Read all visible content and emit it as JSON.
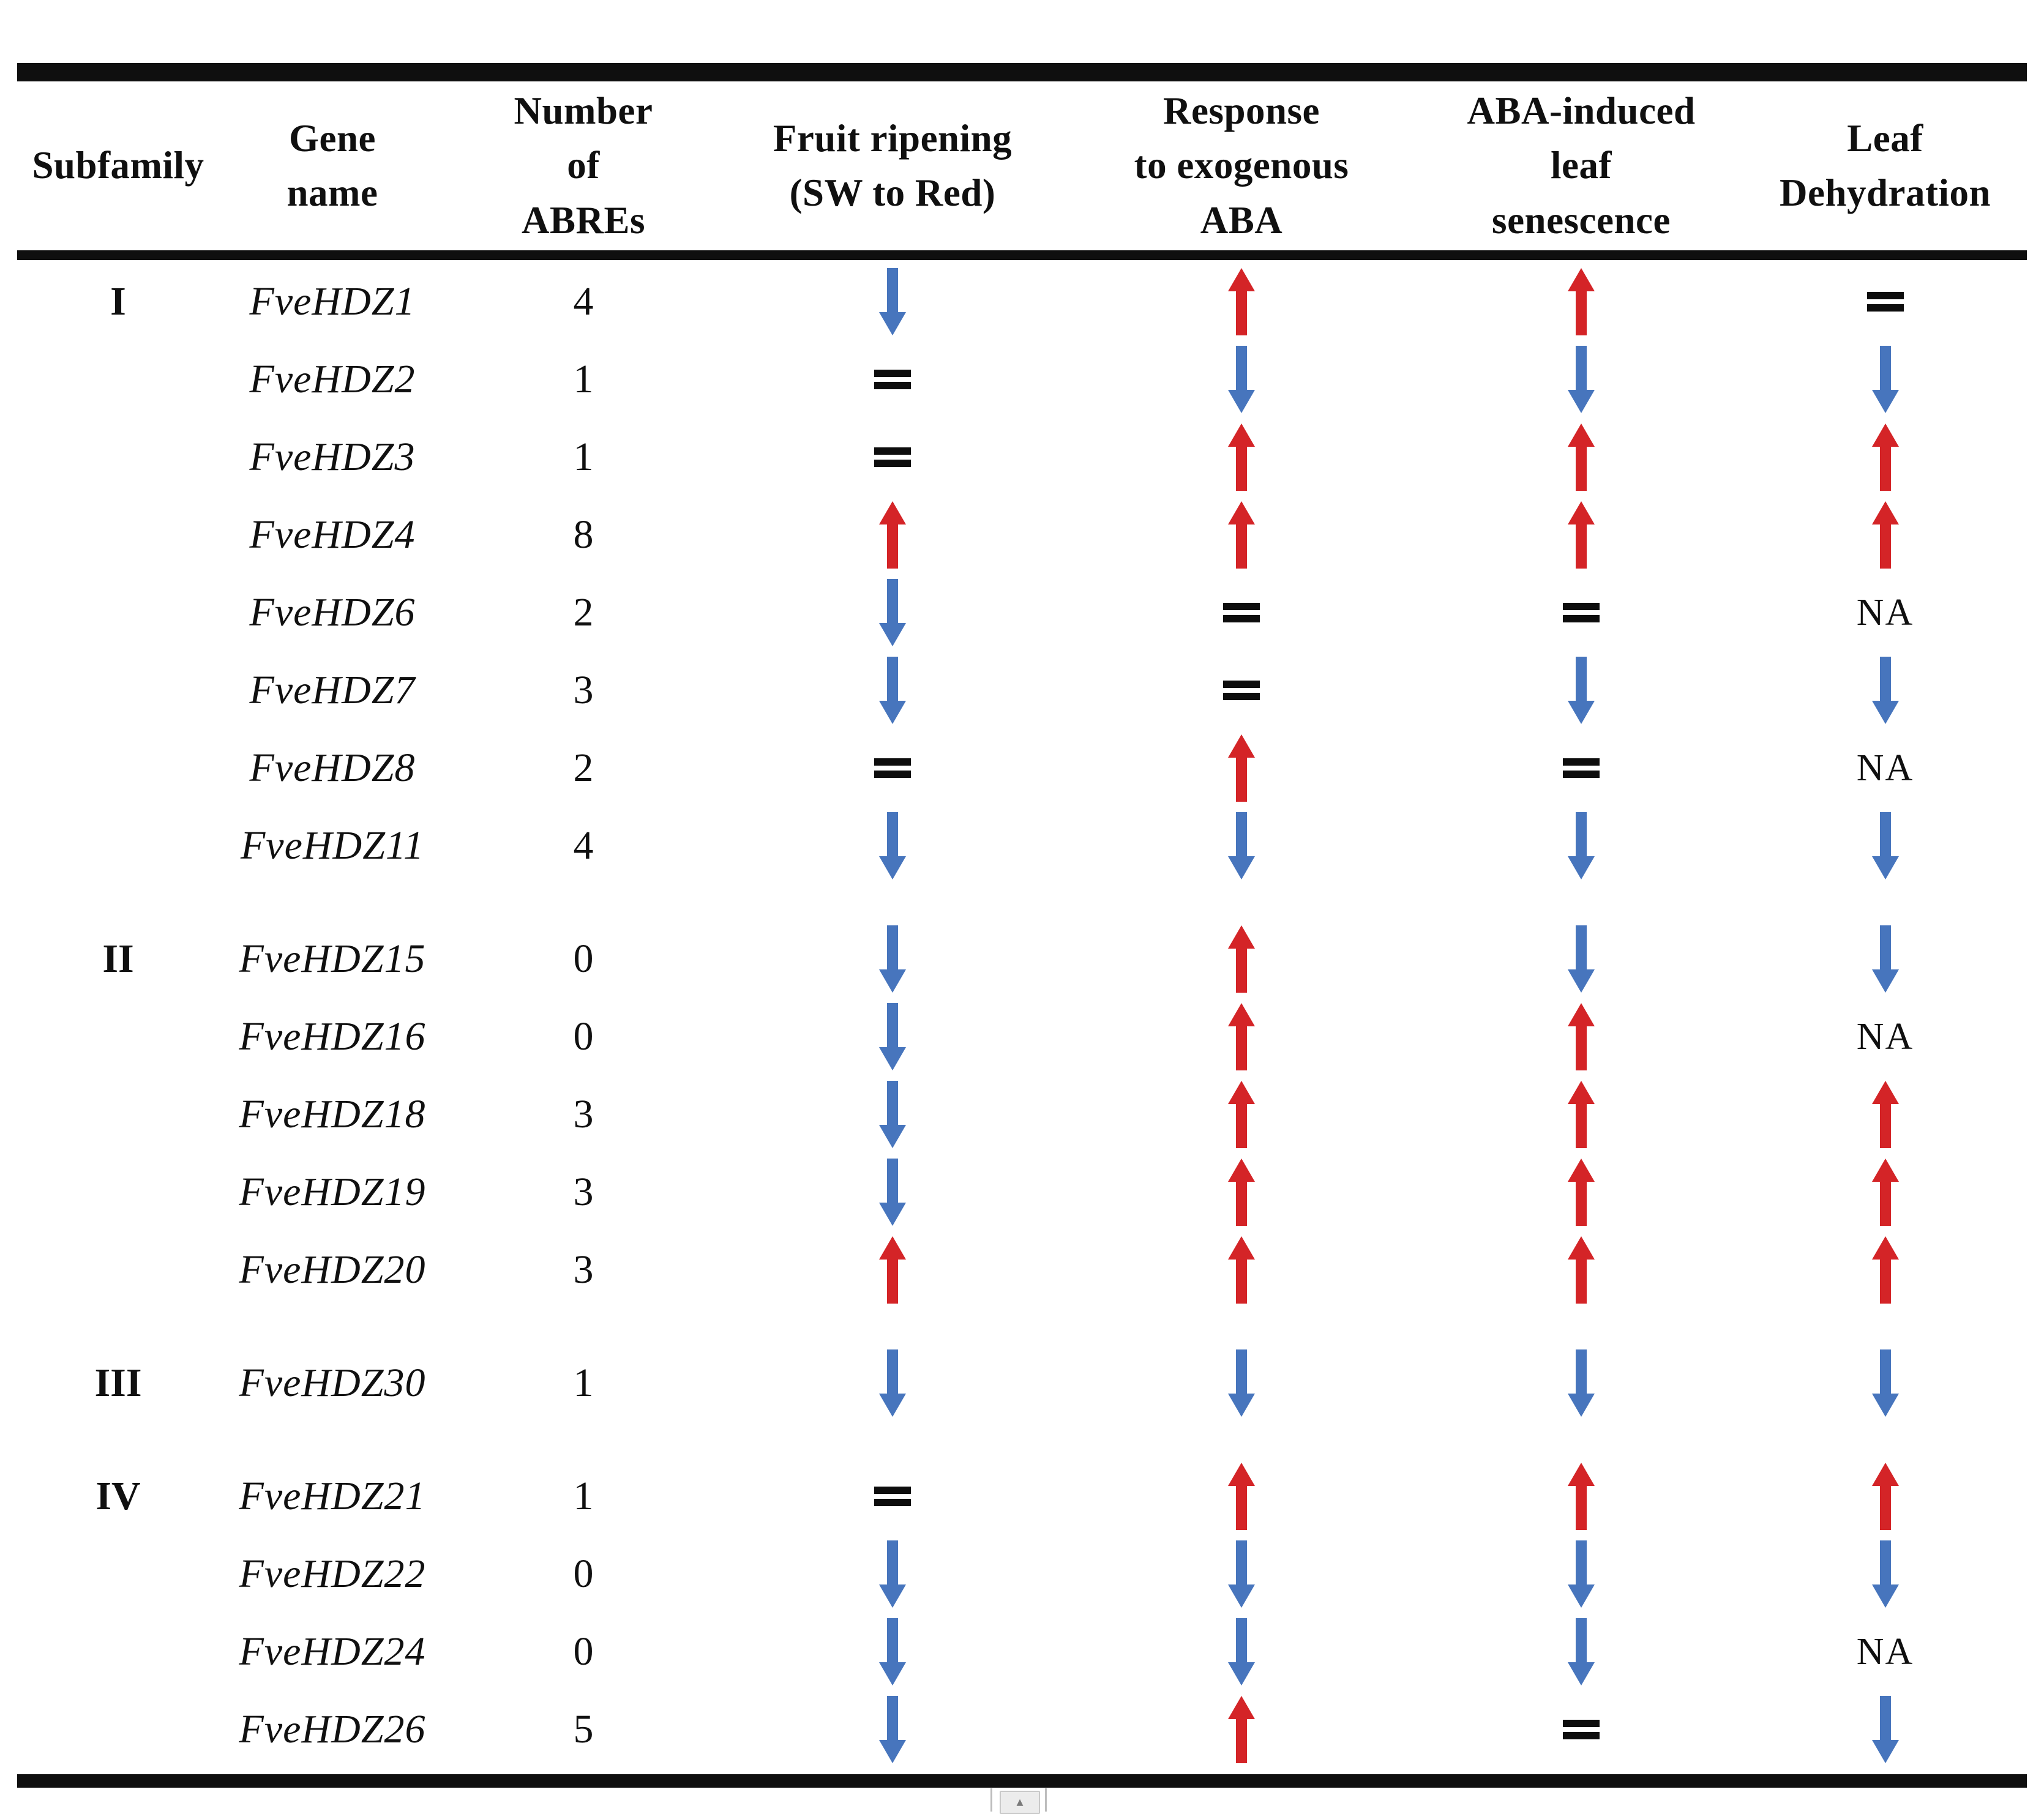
{
  "table": {
    "columns": [
      {
        "id": "subfamily",
        "label": "Subfamily"
      },
      {
        "id": "gene_name",
        "label": "Gene\nname"
      },
      {
        "id": "abres",
        "label": "Number\nof\nABREs"
      },
      {
        "id": "fruit_ripening",
        "label": "Fruit ripening\n(SW to Red)"
      },
      {
        "id": "aba_response",
        "label": "Response\nto exogenous\nABA"
      },
      {
        "id": "leaf_senescence",
        "label": "ABA-induced\nleaf\nsenescence"
      },
      {
        "id": "leaf_dehydration",
        "label": "Leaf\nDehydration"
      }
    ],
    "symbols": {
      "up_color": "#d42427",
      "down_color": "#4775bd",
      "eq_color": "#0d0d0d",
      "na_label": "NA"
    },
    "rows": [
      {
        "subfamily": "I",
        "gene": "FveHDZ1",
        "abres": "4",
        "fruit_ripening": "down",
        "aba_response": "up",
        "leaf_senescence": "up",
        "leaf_dehydration": "eq",
        "new_group": true
      },
      {
        "subfamily": "",
        "gene": "FveHDZ2",
        "abres": "1",
        "fruit_ripening": "eq",
        "aba_response": "down",
        "leaf_senescence": "down",
        "leaf_dehydration": "down",
        "new_group": false
      },
      {
        "subfamily": "",
        "gene": "FveHDZ3",
        "abres": "1",
        "fruit_ripening": "eq",
        "aba_response": "up",
        "leaf_senescence": "up",
        "leaf_dehydration": "up",
        "new_group": false
      },
      {
        "subfamily": "",
        "gene": "FveHDZ4",
        "abres": "8",
        "fruit_ripening": "up",
        "aba_response": "up",
        "leaf_senescence": "up",
        "leaf_dehydration": "up",
        "new_group": false
      },
      {
        "subfamily": "",
        "gene": "FveHDZ6",
        "abres": "2",
        "fruit_ripening": "down",
        "aba_response": "eq",
        "leaf_senescence": "eq",
        "leaf_dehydration": "na",
        "new_group": false
      },
      {
        "subfamily": "",
        "gene": "FveHDZ7",
        "abres": "3",
        "fruit_ripening": "down",
        "aba_response": "eq",
        "leaf_senescence": "down",
        "leaf_dehydration": "down",
        "new_group": false
      },
      {
        "subfamily": "",
        "gene": "FveHDZ8",
        "abres": "2",
        "fruit_ripening": "eq",
        "aba_response": "up",
        "leaf_senescence": "eq",
        "leaf_dehydration": "na",
        "new_group": false
      },
      {
        "subfamily": "",
        "gene": "FveHDZ11",
        "abres": "4",
        "fruit_ripening": "down",
        "aba_response": "down",
        "leaf_senescence": "down",
        "leaf_dehydration": "down",
        "new_group": false
      },
      {
        "subfamily": "II",
        "gene": "FveHDZ15",
        "abres": "0",
        "fruit_ripening": "down",
        "aba_response": "up",
        "leaf_senescence": "down",
        "leaf_dehydration": "down",
        "new_group": true
      },
      {
        "subfamily": "",
        "gene": "FveHDZ16",
        "abres": "0",
        "fruit_ripening": "down",
        "aba_response": "up",
        "leaf_senescence": "up",
        "leaf_dehydration": "na",
        "new_group": false
      },
      {
        "subfamily": "",
        "gene": "FveHDZ18",
        "abres": "3",
        "fruit_ripening": "down",
        "aba_response": "up",
        "leaf_senescence": "up",
        "leaf_dehydration": "up",
        "new_group": false
      },
      {
        "subfamily": "",
        "gene": "FveHDZ19",
        "abres": "3",
        "fruit_ripening": "down",
        "aba_response": "up",
        "leaf_senescence": "up",
        "leaf_dehydration": "up",
        "new_group": false
      },
      {
        "subfamily": "",
        "gene": "FveHDZ20",
        "abres": "3",
        "fruit_ripening": "up",
        "aba_response": "up",
        "leaf_senescence": "up",
        "leaf_dehydration": "up",
        "new_group": false
      },
      {
        "subfamily": "III",
        "gene": "FveHDZ30",
        "abres": "1",
        "fruit_ripening": "down",
        "aba_response": "down",
        "leaf_senescence": "down",
        "leaf_dehydration": "down",
        "new_group": true
      },
      {
        "subfamily": "IV",
        "gene": "FveHDZ21",
        "abres": "1",
        "fruit_ripening": "eq",
        "aba_response": "up",
        "leaf_senescence": "up",
        "leaf_dehydration": "up",
        "new_group": true
      },
      {
        "subfamily": "",
        "gene": "FveHDZ22",
        "abres": "0",
        "fruit_ripening": "down",
        "aba_response": "down",
        "leaf_senescence": "down",
        "leaf_dehydration": "down",
        "new_group": false
      },
      {
        "subfamily": "",
        "gene": "FveHDZ24",
        "abres": "0",
        "fruit_ripening": "down",
        "aba_response": "down",
        "leaf_senescence": "down",
        "leaf_dehydration": "na",
        "new_group": false
      },
      {
        "subfamily": "",
        "gene": "FveHDZ26",
        "abres": "5",
        "fruit_ripening": "down",
        "aba_response": "up",
        "leaf_senescence": "eq",
        "leaf_dehydration": "down",
        "new_group": false
      }
    ]
  },
  "widget": {
    "glyph": "▴"
  }
}
